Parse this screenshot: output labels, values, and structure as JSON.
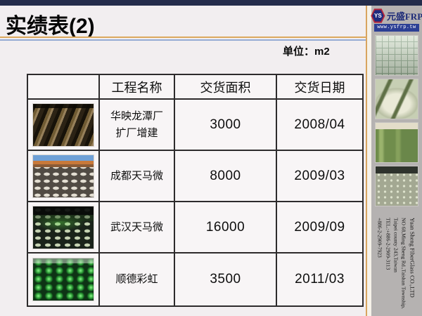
{
  "slide": {
    "title": "实绩表(2)",
    "unit_label": "单位：m2"
  },
  "table": {
    "headers": {
      "photo": "",
      "name": "工程名称",
      "area": "交货面积",
      "date": "交货日期"
    },
    "rows": [
      {
        "photo_desc": "brown steel formwork interior",
        "name": "华映龙潭厂\n扩厂增建",
        "area": "3000",
        "date": "2008/04"
      },
      {
        "photo_desc": "construction site with rows of white drums and cranes",
        "name": "成都天马微",
        "area": "8000",
        "date": "2009/03"
      },
      {
        "photo_desc": "dark plant floor with round covers under green light",
        "name": "武汉天马微",
        "area": "16000",
        "date": "2009/09"
      },
      {
        "photo_desc": "rows of green dome covers",
        "name": "顺德彩虹",
        "area": "3500",
        "date": "2011/03"
      }
    ]
  },
  "sidebar": {
    "logo": {
      "monogram": "YS",
      "brand": "元盛FRP",
      "website": "www.ysfrp.tw"
    },
    "photos": [
      "waffle ceiling structure",
      "FRP tank with piping",
      "large green FRP tanks",
      "plant floor with round covers"
    ],
    "contact": {
      "company": "Yuan Sheng FiberGlass CO.,LTD",
      "address1": "NO 68,Ming Sheng Rd.,Taishan Township,",
      "address2": "Taipei county 243,Taiwan",
      "tel1": "TEL.:+886-2-2909-3113",
      "tel2": "+886-2-2909-7923"
    }
  },
  "colors": {
    "top_bar": "#242c4b",
    "accent_orange": "#dba85e",
    "accent_blue": "#95abd4",
    "sidebar_gray": "#b5b2b1",
    "logo_blue": "#2c3f94",
    "logo_red": "#b6263a"
  }
}
